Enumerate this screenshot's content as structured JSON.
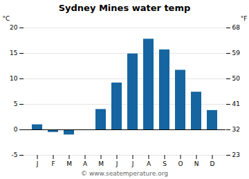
{
  "chart_data": {
    "type": "bar",
    "title": "Sydney Mines water temp",
    "categories": [
      "J",
      "F",
      "M",
      "A",
      "M",
      "J",
      "J",
      "A",
      "S",
      "O",
      "N",
      "D"
    ],
    "values": [
      1.0,
      -0.5,
      -1.0,
      0.0,
      4.0,
      9.2,
      14.9,
      17.8,
      15.7,
      11.7,
      7.4,
      3.8
    ],
    "color": "#1565a0",
    "ylabel": "°C",
    "ylim": [
      -5,
      20
    ],
    "yticks": [
      -5,
      0,
      5,
      10,
      15,
      20
    ],
    "y2label": "°F",
    "y2lim": [
      23,
      68
    ],
    "y2ticks": [
      23,
      32,
      41,
      50,
      59,
      68
    ],
    "grid": true,
    "annotations": [
      "© www.seatemperature.org"
    ]
  }
}
